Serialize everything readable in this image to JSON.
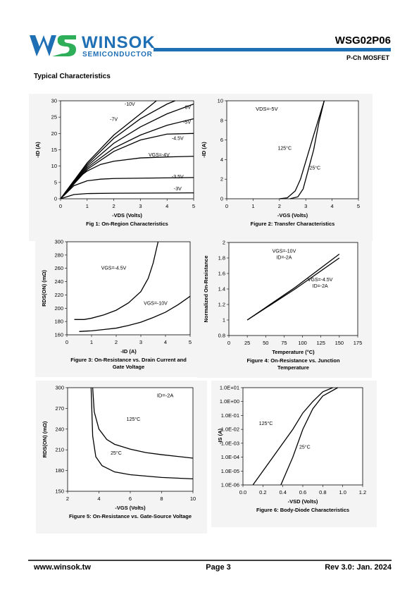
{
  "header": {
    "brand": "WINSOK",
    "brand_sub": "SEMICONDUCTOR",
    "part": "WSG02P06",
    "subtitle": "P-Ch MOSFET"
  },
  "section_title": "Typical Characteristics",
  "charts": [
    {
      "type": "line",
      "title": [
        "Fig 1: On-Region Characteristics"
      ],
      "x_label": "-VDS (Volts)",
      "y_label": "-ID (A)",
      "xlim": [
        0,
        5
      ],
      "xticks": [
        0,
        1,
        2,
        3,
        4,
        5
      ],
      "ylim": [
        0,
        30
      ],
      "yticks": [
        0,
        5,
        10,
        15,
        20,
        25,
        30
      ],
      "series": [
        {
          "name": "-10V",
          "x": [
            0,
            1,
            2,
            3,
            3.6
          ],
          "values": [
            0,
            11,
            19.5,
            26,
            30
          ]
        },
        {
          "name": "-7V",
          "x": [
            0,
            1,
            2,
            3,
            4,
            4.3
          ],
          "values": [
            0,
            10.5,
            18.5,
            24.5,
            29,
            30
          ]
        },
        {
          "name": "-6V",
          "x": [
            0,
            1,
            2,
            3,
            4,
            5
          ],
          "values": [
            0,
            10,
            17,
            22,
            26,
            29
          ]
        },
        {
          "name": "-5V",
          "x": [
            0,
            1,
            2,
            3,
            4,
            5
          ],
          "values": [
            0,
            9.5,
            15.5,
            19.5,
            22.5,
            24.5
          ]
        },
        {
          "name": "-4.5V",
          "x": [
            0,
            1,
            2,
            3,
            4,
            5
          ],
          "values": [
            0,
            9,
            14.5,
            18,
            19.8,
            20
          ]
        },
        {
          "name": "VGS=-4V",
          "x": [
            0,
            0.5,
            1,
            1.5,
            2,
            3,
            4,
            5
          ],
          "values": [
            0,
            5.5,
            8.5,
            10.5,
            11.5,
            12.5,
            12.8,
            13
          ]
        },
        {
          "name": "-3.5V",
          "x": [
            0,
            0.5,
            1,
            1.5,
            2,
            5
          ],
          "values": [
            0,
            4,
            5.5,
            6,
            6.2,
            6.5
          ]
        },
        {
          "name": "-3V",
          "x": [
            0,
            0.5,
            1,
            2,
            5
          ],
          "values": [
            0,
            1.3,
            1.6,
            1.7,
            1.8
          ]
        }
      ],
      "annotations": []
    },
    {
      "type": "line",
      "title": [
        "Figure 2: Transfer Characteristics"
      ],
      "x_label": "-VGS (Volts)",
      "y_label": "-ID (A)",
      "xlim": [
        0,
        5
      ],
      "xticks": [
        0,
        1,
        2,
        3,
        4,
        5
      ],
      "ylim": [
        0,
        10
      ],
      "yticks": [
        0,
        2,
        4,
        6,
        8,
        10
      ],
      "series": [
        {
          "name": "125°C",
          "x": [
            2,
            2.3,
            2.6,
            2.8,
            3,
            3.3,
            3.7
          ],
          "values": [
            0,
            0.1,
            0.8,
            2,
            3.8,
            6.5,
            10
          ]
        },
        {
          "name": "25°C",
          "x": [
            2.4,
            2.7,
            2.9,
            3.1,
            3.3,
            3.5,
            3.7
          ],
          "values": [
            0,
            0.2,
            1,
            3,
            5,
            7.8,
            10
          ]
        }
      ],
      "annotations": [
        "VDS=-5V"
      ]
    },
    {
      "type": "line",
      "title": [
        "Figure 3: On-Resistance vs. Drain Current and",
        "Gate Voltage"
      ],
      "x_label": "-ID (A)",
      "y_label": "RDS(ON) (mΩ)",
      "xlim": [
        0,
        5
      ],
      "xticks": [
        0,
        1,
        2,
        3,
        4,
        5
      ],
      "ylim": [
        160,
        300
      ],
      "yticks": [
        160,
        180,
        200,
        220,
        240,
        260,
        280,
        300
      ],
      "series": [
        {
          "name": "VGS=-4.5V",
          "x": [
            0.3,
            0.7,
            1,
            1.5,
            2,
            2.5,
            3,
            3.3,
            3.5,
            3.7
          ],
          "values": [
            183,
            183,
            185,
            190,
            197,
            208,
            225,
            245,
            268,
            300
          ]
        },
        {
          "name": "VGS=-10V",
          "x": [
            0.5,
            1,
            1.5,
            2,
            2.5,
            3,
            3.5,
            4,
            4.5,
            5
          ],
          "values": [
            165,
            166,
            168,
            170,
            174,
            179,
            186,
            194,
            205,
            218
          ]
        }
      ],
      "annotations": []
    },
    {
      "type": "line",
      "title": [
        "Figure 4: On-Resistance vs. Junction",
        "Temperature"
      ],
      "x_label": "Temperature (°C)",
      "y_label": "Normalized On-Resistance",
      "xlim": [
        0,
        175
      ],
      "xticks": [
        0,
        25,
        50,
        75,
        100,
        125,
        150,
        175
      ],
      "ylim": [
        0.8,
        2
      ],
      "yticks": [
        0.8,
        1,
        1.2,
        1.4,
        1.6,
        1.8,
        2
      ],
      "series": [
        {
          "name": [
            "VGS=-10V",
            "ID=-2A"
          ],
          "x": [
            25,
            90,
            150
          ],
          "values": [
            1,
            1.42,
            1.85
          ]
        },
        {
          "name": [
            "VGS=-4.5V",
            "ID=-2A"
          ],
          "x": [
            25,
            90,
            150
          ],
          "values": [
            1,
            1.4,
            1.8
          ]
        }
      ],
      "annotations": []
    },
    {
      "type": "line",
      "title": [
        "Figure 5: On-Resistance vs. Gate-Source Voltage"
      ],
      "x_label": "-VGS (Volts)",
      "y_label": "RDS(ON) (mΩ)",
      "xlim": [
        2,
        10
      ],
      "xticks": [
        2,
        4,
        6,
        8,
        10
      ],
      "ylim": [
        150,
        300
      ],
      "yticks": [
        150,
        180,
        210,
        240,
        270,
        300
      ],
      "series": [
        {
          "name": "125°C",
          "x": [
            3.6,
            3.7,
            4,
            4.5,
            5,
            6,
            7,
            8,
            10
          ],
          "values": [
            300,
            265,
            240,
            225,
            218,
            211,
            206,
            203,
            198
          ]
        },
        {
          "name": "25°C",
          "x": [
            3.5,
            3.6,
            3.8,
            4.2,
            5,
            6,
            8,
            10
          ],
          "values": [
            300,
            230,
            200,
            187,
            178,
            174,
            170,
            168
          ]
        }
      ],
      "annotations": [
        "ID=-2A"
      ]
    },
    {
      "type": "line",
      "title": [
        "Figure 6: Body-Diode Characteristics"
      ],
      "x_label": "-VSD (Volts)",
      "y_label": "-IS (A)",
      "yscale": "log",
      "xlim": [
        0,
        1.2
      ],
      "xticks": [
        {
          "value": 0,
          "label": "0.0"
        },
        0.2,
        0.4,
        0.6,
        0.8,
        {
          "value": 1,
          "label": "1.0"
        },
        1.2
      ],
      "ylim": [
        1e-06,
        10
      ],
      "yticks": [
        {
          "value": 1e-06,
          "label": "1.0E-06"
        },
        {
          "value": 1e-05,
          "label": "1.0E-05"
        },
        {
          "value": 0.0001,
          "label": "1.0E-04"
        },
        {
          "value": 0.001,
          "label": "1.0E-03"
        },
        {
          "value": 0.01,
          "label": "1.0E-02"
        },
        {
          "value": 0.1,
          "label": "1.0E-01"
        },
        {
          "value": 1,
          "label": "1.0E+00"
        },
        {
          "value": 10,
          "label": "1.0E+01"
        }
      ],
      "series": [
        {
          "name": "125°C",
          "x": [
            0.1,
            0.3,
            0.5,
            0.6,
            0.7,
            0.8,
            0.9
          ],
          "values": [
            1e-06,
            0.0001,
            0.01,
            0.15,
            1,
            5,
            10
          ]
        },
        {
          "name": "25°C",
          "x": [
            0.38,
            0.5,
            0.6,
            0.7,
            0.8,
            0.95
          ],
          "values": [
            1e-06,
            0.0001,
            0.01,
            0.3,
            2.5,
            10
          ]
        }
      ],
      "annotations": []
    }
  ],
  "footer": {
    "website": "www.winsok.tw",
    "page": "Page 3",
    "revision": "Rev 3.0: Jan. 2024"
  }
}
